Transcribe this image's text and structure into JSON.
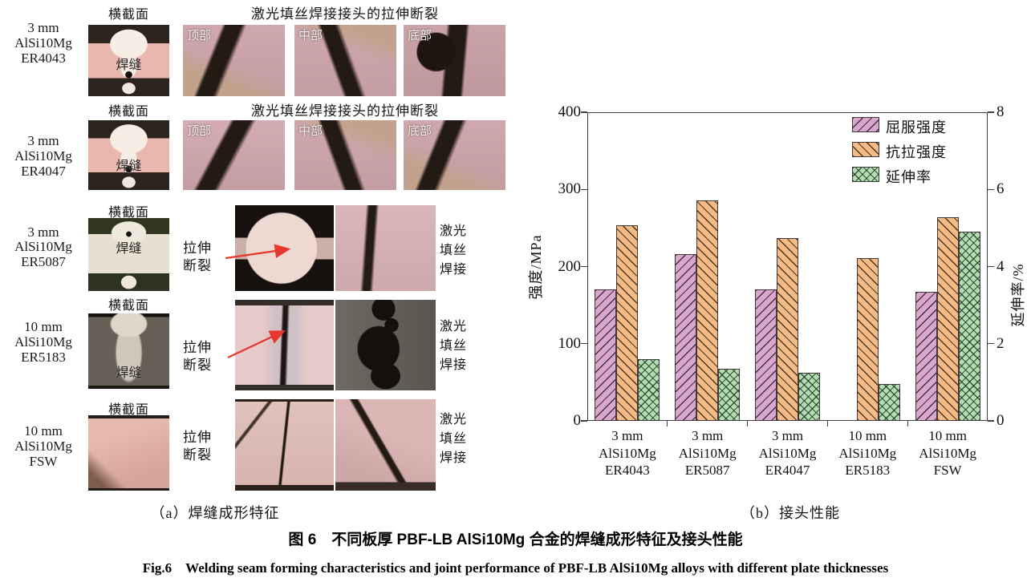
{
  "left_panel": {
    "caption": "（a）焊缝成形特征",
    "rows": [
      {
        "label": [
          "3 mm",
          "AlSi10Mg",
          "ER4043"
        ],
        "section_header": "横截面",
        "weld_label": "焊缝",
        "right_header": "激光填丝焊接接头的拉伸断裂",
        "fracture_labels": [
          "顶部",
          "中部",
          "底部"
        ]
      },
      {
        "label": [
          "3 mm",
          "AlSi10Mg",
          "ER4047"
        ],
        "section_header": "横截面",
        "weld_label": "焊缝",
        "right_header": "激光填丝焊接接头的拉伸断裂",
        "fracture_labels": [
          "顶部",
          "中部",
          "底部"
        ]
      },
      {
        "label": [
          "3 mm",
          "AlSi10Mg",
          "ER5087"
        ],
        "section_header": "横截面",
        "weld_label": "焊缝",
        "fracture_caption": [
          "拉伸",
          "断裂"
        ],
        "side_caption": [
          "激光",
          "填丝",
          "焊接"
        ]
      },
      {
        "label": [
          "10 mm",
          "AlSi10Mg",
          "ER5183"
        ],
        "section_header": "横截面",
        "weld_label": "焊缝",
        "fracture_caption": [
          "拉伸",
          "断裂"
        ],
        "side_caption": [
          "激光",
          "填丝",
          "焊接"
        ]
      },
      {
        "label": [
          "10 mm",
          "AlSi10Mg",
          "FSW"
        ],
        "section_header": "横截面",
        "weld_label": "",
        "fracture_caption": [
          "拉伸",
          "断裂"
        ],
        "side_caption": [
          "激光",
          "填丝",
          "焊接"
        ]
      }
    ]
  },
  "chart": {
    "caption": "（b）接头性能"
  },
  "chart_data": {
    "type": "bar",
    "title": "",
    "categories": [
      [
        "3 mm",
        "AlSi10Mg",
        "ER4043"
      ],
      [
        "3 mm",
        "AlSi10Mg",
        "ER5087"
      ],
      [
        "3 mm",
        "AlSi10Mg",
        "ER4047"
      ],
      [
        "10 mm",
        "AlSi10Mg",
        "ER5183"
      ],
      [
        "10 mm",
        "AlSi10Mg",
        "FSW"
      ]
    ],
    "series": [
      {
        "name": "屈服强度",
        "axis": "left",
        "unit": "MPa",
        "color": "#d9a6ce",
        "hatch": "/",
        "values": [
          170,
          216,
          170,
          null,
          167
        ]
      },
      {
        "name": "抗拉强度",
        "axis": "left",
        "unit": "MPa",
        "color": "#f5bb86",
        "hatch": "\\",
        "values": [
          253,
          286,
          237,
          211,
          264
        ]
      },
      {
        "name": "延伸率",
        "axis": "right",
        "unit": "%",
        "color": "#b3dcb2",
        "hatch": "x",
        "values": [
          1.6,
          1.35,
          1.25,
          0.95,
          4.9
        ]
      }
    ],
    "ylabel_left": "强度/MPa",
    "ylim_left": [
      0,
      400
    ],
    "yticks_left": [
      0,
      100,
      200,
      300,
      400
    ],
    "ylabel_right": "延伸率/%",
    "ylim_right": [
      0,
      8
    ],
    "yticks_right": [
      0,
      2,
      4,
      6,
      8
    ],
    "legend_position": "upper right",
    "grid": false,
    "arrow_color": "#e8372c"
  },
  "figure": {
    "caption_cn": "图 6　不同板厚 PBF-LB AlSi10Mg 合金的焊缝成形特征及接头性能",
    "caption_en": "Fig.6　Welding seam forming characteristics and joint performance of PBF-LB AlSi10Mg alloys with different plate thicknesses"
  }
}
